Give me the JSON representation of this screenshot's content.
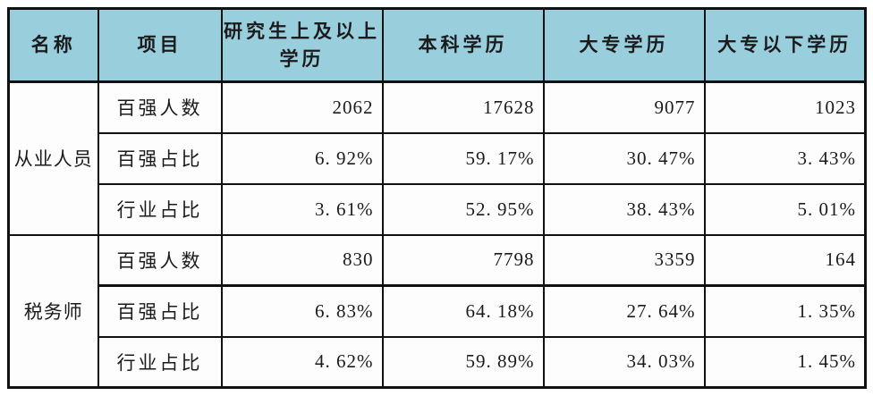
{
  "table": {
    "header": {
      "name": "名称",
      "item": "项目",
      "edu_grad_line1": "研究生上及以上",
      "edu_grad_line2": "学历",
      "edu_bachelor": "本科学历",
      "edu_college": "大专学历",
      "edu_below_college": "大专以下学历"
    },
    "groups": [
      {
        "name": "从业人员",
        "rows": [
          {
            "label": "百强人数",
            "values": [
              "2062",
              "17628",
              "9077",
              "1023"
            ]
          },
          {
            "label": "百强占比",
            "values": [
              "6. 92%",
              "59. 17%",
              "30. 47%",
              "3. 43%"
            ]
          },
          {
            "label": "行业占比",
            "values": [
              "3. 61%",
              "52. 95%",
              "38. 43%",
              "5. 01%"
            ]
          }
        ]
      },
      {
        "name": "税务师",
        "rows": [
          {
            "label": "百强人数",
            "values": [
              "830",
              "7798",
              "3359",
              "164"
            ]
          },
          {
            "label": "百强占比",
            "values": [
              "6. 83%",
              "64. 18%",
              "27. 64%",
              "1. 35%"
            ]
          },
          {
            "label": "行业占比",
            "values": [
              "4. 62%",
              "59. 89%",
              "34. 03%",
              "1. 45%"
            ]
          }
        ]
      }
    ],
    "colors": {
      "header_bg": "#99cedd",
      "border": "#111111",
      "text": "#1b1b1b",
      "page_bg": "#ffffff"
    }
  },
  "chart_data": {
    "type": "table",
    "columns": [
      "名称",
      "项目",
      "研究生上及以上学历",
      "本科学历",
      "大专学历",
      "大专以下学历"
    ],
    "rows": [
      [
        "从业人员",
        "百强人数",
        2062,
        17628,
        9077,
        1023
      ],
      [
        "从业人员",
        "百强占比",
        "6.92%",
        "59.17%",
        "30.47%",
        "3.43%"
      ],
      [
        "从业人员",
        "行业占比",
        "3.61%",
        "52.95%",
        "38.43%",
        "5.01%"
      ],
      [
        "税务师",
        "百强人数",
        830,
        7798,
        3359,
        164
      ],
      [
        "税务师",
        "百强占比",
        "6.83%",
        "64.18%",
        "27.64%",
        "1.35%"
      ],
      [
        "税务师",
        "行业占比",
        "4.62%",
        "59.89%",
        "34.03%",
        "1.45%"
      ]
    ],
    "layout": {
      "header_fill": "#99cedd",
      "grid": true,
      "merged_first_column_groups": [
        "从业人员",
        "税务师"
      ]
    }
  }
}
